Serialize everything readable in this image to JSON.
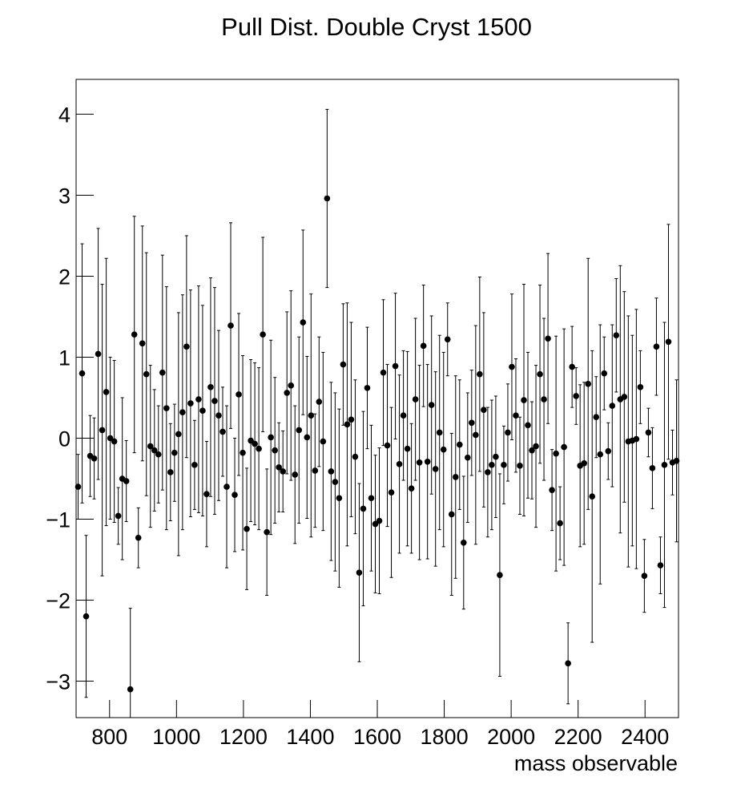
{
  "chart_data": {
    "type": "errorbar",
    "title": "Pull Dist. Double Cryst 1500",
    "x_label": "mass observable",
    "x": [
      706,
      718,
      730,
      742,
      754,
      766,
      778,
      790,
      802,
      814,
      826,
      838,
      850,
      862,
      874,
      886,
      898,
      910,
      922,
      934,
      946,
      958,
      970,
      982,
      994,
      1006,
      1018,
      1030,
      1042,
      1054,
      1066,
      1078,
      1090,
      1102,
      1114,
      1126,
      1138,
      1150,
      1162,
      1174,
      1186,
      1198,
      1210,
      1222,
      1234,
      1246,
      1258,
      1270,
      1282,
      1294,
      1306,
      1318,
      1330,
      1342,
      1354,
      1366,
      1378,
      1390,
      1402,
      1414,
      1426,
      1438,
      1450,
      1462,
      1474,
      1486,
      1498,
      1510,
      1522,
      1534,
      1546,
      1558,
      1570,
      1582,
      1594,
      1606,
      1618,
      1630,
      1642,
      1654,
      1666,
      1678,
      1690,
      1702,
      1714,
      1726,
      1738,
      1750,
      1762,
      1774,
      1786,
      1798,
      1810,
      1822,
      1834,
      1846,
      1858,
      1870,
      1882,
      1894,
      1906,
      1918,
      1930,
      1942,
      1954,
      1966,
      1978,
      1990,
      2002,
      2014,
      2026,
      2038,
      2050,
      2062,
      2074,
      2086,
      2098,
      2110,
      2122,
      2134,
      2146,
      2158,
      2170,
      2182,
      2194,
      2206,
      2218,
      2230,
      2242,
      2254,
      2266,
      2278,
      2290,
      2302,
      2314,
      2326,
      2338,
      2350,
      2362,
      2374,
      2386,
      2398,
      2410,
      2422,
      2434,
      2446,
      2458,
      2470,
      2482,
      2494
    ],
    "values": [
      -0.6,
      0.8,
      -2.2,
      -0.22,
      -0.25,
      1.04,
      0.1,
      0.57,
      0,
      -0.04,
      -0.96,
      -0.5,
      -0.53,
      -3.1,
      1.28,
      -1.23,
      1.17,
      0.79,
      -0.1,
      -0.15,
      -0.2,
      0.81,
      0.37,
      -0.42,
      -0.18,
      0.05,
      0.32,
      1.13,
      0.43,
      -0.33,
      0.48,
      0.34,
      -0.69,
      0.63,
      0.46,
      0.28,
      0.08,
      -0.6,
      1.39,
      -0.7,
      0.54,
      -0.18,
      -1.12,
      -0.03,
      -0.07,
      -0.13,
      1.28,
      -1.16,
      0.01,
      -0.15,
      -0.36,
      -0.41,
      0.56,
      0.65,
      -0.45,
      0.1,
      1.43,
      0.01,
      0.28,
      -0.4,
      0.45,
      -0.04,
      2.96,
      -0.41,
      -0.54,
      -0.74,
      0.91,
      0.17,
      0.23,
      -0.23,
      -1.66,
      -0.87,
      0.62,
      -0.74,
      -1.06,
      -1.02,
      0.81,
      -0.09,
      -0.67,
      0.89,
      -0.32,
      0.28,
      -0.13,
      -0.62,
      0.48,
      -0.3,
      1.14,
      -0.29,
      0.41,
      -0.38,
      0.07,
      -0.14,
      1.22,
      -0.94,
      -0.48,
      -0.08,
      -1.29,
      -0.24,
      0.19,
      0.04,
      0.79,
      0.35,
      -0.42,
      -0.33,
      -0.23,
      -1.69,
      -0.33,
      0.07,
      0.88,
      0.28,
      -0.34,
      0.47,
      0.16,
      -0.15,
      -0.1,
      0.79,
      0.48,
      1.23,
      -0.64,
      -0.19,
      -1.05,
      -0.11,
      -2.78,
      0.88,
      0.52,
      -0.34,
      -0.31,
      0.67,
      -0.72,
      0.26,
      -0.2,
      0.8,
      -0.16,
      0.4,
      1.27,
      0.48,
      0.51,
      -0.04,
      -0.03,
      -0.01,
      0.63,
      -1.7,
      0.07,
      -0.37,
      1.13,
      -1.57,
      -0.33,
      1.19,
      -0.3,
      -0.28
    ],
    "errors": [
      0.4,
      1.6,
      1.0,
      0.5,
      0.5,
      1.55,
      1.8,
      1.65,
      1.0,
      1.0,
      0.35,
      1.0,
      0.5,
      1.0,
      1.46,
      0.37,
      1.45,
      1.5,
      1.0,
      0.75,
      0.6,
      1.45,
      1.5,
      0.6,
      0.6,
      1.5,
      1.45,
      1.37,
      1.4,
      0.55,
      1.4,
      1.3,
      0.65,
      1.35,
      1.4,
      1.05,
      0.55,
      1.0,
      1.27,
      0.7,
      1.0,
      1.2,
      0.75,
      1.0,
      1.0,
      1.0,
      1.2,
      0.78,
      1.2,
      0.9,
      0.55,
      0.5,
      1.0,
      1.17,
      0.85,
      1.15,
      1.14,
      1.0,
      1.5,
      0.7,
      0.8,
      1.1,
      1.1,
      1.1,
      1.1,
      1.1,
      0.75,
      1.5,
      1.2,
      0.95,
      1.1,
      1.2,
      0.75,
      0.9,
      0.85,
      0.9,
      0.9,
      1.0,
      1.05,
      0.9,
      1.1,
      0.8,
      1.2,
      0.8,
      1.0,
      1.2,
      0.75,
      1.2,
      1.1,
      1.2,
      1.2,
      1.2,
      0.45,
      1.0,
      1.25,
      0.8,
      0.82,
      0.8,
      0.65,
      1.35,
      1.2,
      1.2,
      0.8,
      0.8,
      0.75,
      1.25,
      0.48,
      0.6,
      0.9,
      0.7,
      0.6,
      1.43,
      0.9,
      0.6,
      1.0,
      1.1,
      1.0,
      1.05,
      0.5,
      1.45,
      0.45,
      1.46,
      0.5,
      0.5,
      0.35,
      1.0,
      1.0,
      1.55,
      1.8,
      0.5,
      1.6,
      0.45,
      0.35,
      1.0,
      0.7,
      1.65,
      1.3,
      1.55,
      1.3,
      1.6,
      0.45,
      0.45,
      0.3,
      0.5,
      0.6,
      0.35,
      1.76,
      1.45,
      0.4,
      1.0
    ],
    "color": "#000000",
    "xlim": [
      700,
      2500
    ],
    "xticks": [
      800,
      1000,
      1200,
      1400,
      1600,
      1800,
      2000,
      2200,
      2400
    ],
    "ylim": [
      -3.45,
      4.43
    ],
    "yticks": [
      {
        "value": -3,
        "label": "−3"
      },
      {
        "value": -2,
        "label": "−2"
      },
      {
        "value": -1,
        "label": "−1"
      },
      0,
      1,
      2,
      3,
      4
    ]
  }
}
